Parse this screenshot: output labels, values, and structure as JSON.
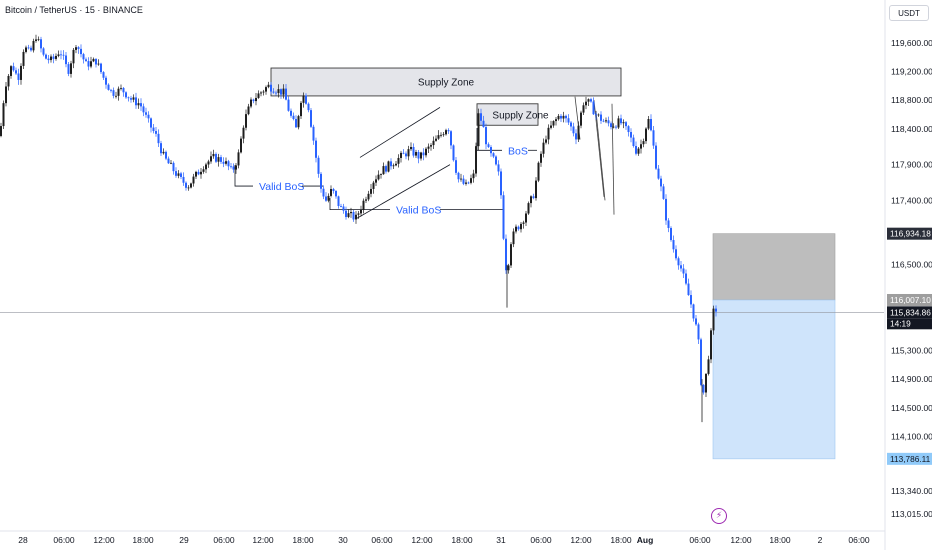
{
  "header": {
    "title": "Bitcoin / TetherUS · 15 · BINANCE",
    "currency": "USDT"
  },
  "colors": {
    "up": "#1e1e1e",
    "down": "#2962ff",
    "annotation_text": "#2962ff",
    "zone_fill": "#e4e5ea",
    "stop_fill": "#bdbdbd",
    "target_fill": "#cfe4fb",
    "last_price_bg": "#131722",
    "alert": "#9c27b0"
  },
  "chart_data": {
    "type": "candlestick",
    "price_axis_ticks": [
      119600,
      119200,
      118800,
      118400,
      117900,
      117400,
      116934.18,
      116500,
      116007.1,
      115834.86,
      115300,
      114900,
      114500,
      114100,
      113786.11,
      113340,
      113015
    ],
    "price_axis_labels": [
      "119,600.00",
      "119,200.00",
      "118,800.00",
      "118,400.00",
      "117,900.00",
      "117,400.00",
      "116,500.00",
      "115,300.00",
      "114,900.00",
      "114,500.00",
      "114,100.00",
      "113,340.00",
      "113,015.00"
    ],
    "time_axis_labels": [
      "28",
      "06:00",
      "12:00",
      "18:00",
      "29",
      "06:00",
      "12:00",
      "18:00",
      "30",
      "06:00",
      "12:00",
      "18:00",
      "31",
      "06:00",
      "12:00",
      "18:00",
      "Aug",
      "06:00",
      "12:00",
      "18:00",
      "2",
      "06:00"
    ],
    "ohlc_path": [
      [
        0,
        118300
      ],
      [
        5,
        119000
      ],
      [
        12,
        119300
      ],
      [
        18,
        119100
      ],
      [
        24,
        119550
      ],
      [
        30,
        119450
      ],
      [
        36,
        119700
      ],
      [
        44,
        119400
      ],
      [
        52,
        119350
      ],
      [
        60,
        119500
      ],
      [
        68,
        119200
      ],
      [
        76,
        119600
      ],
      [
        86,
        119300
      ],
      [
        96,
        119350
      ],
      [
        104,
        119100
      ],
      [
        112,
        118900
      ],
      [
        122,
        118950
      ],
      [
        132,
        118800
      ],
      [
        140,
        118750
      ],
      [
        148,
        118500
      ],
      [
        156,
        118300
      ],
      [
        164,
        118000
      ],
      [
        172,
        117850
      ],
      [
        180,
        117700
      ],
      [
        188,
        117600
      ],
      [
        196,
        117750
      ],
      [
        204,
        117900
      ],
      [
        214,
        118000
      ],
      [
        224,
        117950
      ],
      [
        232,
        117800
      ],
      [
        238,
        118000
      ],
      [
        244,
        118500
      ],
      [
        252,
        118800
      ],
      [
        260,
        118900
      ],
      [
        268,
        119000
      ],
      [
        276,
        118950
      ],
      [
        284,
        118900
      ],
      [
        290,
        118600
      ],
      [
        296,
        118400
      ],
      [
        302,
        118900
      ],
      [
        308,
        118750
      ],
      [
        314,
        118200
      ],
      [
        320,
        117600
      ],
      [
        326,
        117400
      ],
      [
        332,
        117550
      ],
      [
        340,
        117300
      ],
      [
        348,
        117200
      ],
      [
        356,
        117150
      ],
      [
        364,
        117400
      ],
      [
        372,
        117650
      ],
      [
        380,
        117800
      ],
      [
        390,
        117900
      ],
      [
        400,
        118000
      ],
      [
        410,
        118100
      ],
      [
        420,
        118000
      ],
      [
        430,
        118150
      ],
      [
        440,
        118300
      ],
      [
        448,
        118450
      ],
      [
        452,
        118100
      ],
      [
        458,
        117700
      ],
      [
        466,
        117600
      ],
      [
        474,
        117750
      ],
      [
        478,
        118600
      ],
      [
        482,
        118500
      ],
      [
        488,
        118100
      ],
      [
        494,
        117950
      ],
      [
        500,
        117700
      ],
      [
        504,
        116800
      ],
      [
        507,
        116300
      ],
      [
        510,
        116800
      ],
      [
        516,
        117000
      ],
      [
        522,
        117100
      ],
      [
        528,
        117300
      ],
      [
        534,
        117500
      ],
      [
        540,
        118000
      ],
      [
        546,
        118300
      ],
      [
        552,
        118450
      ],
      [
        560,
        118600
      ],
      [
        568,
        118500
      ],
      [
        576,
        118300
      ],
      [
        584,
        118800
      ],
      [
        590,
        118750
      ],
      [
        596,
        118600
      ],
      [
        604,
        118500
      ],
      [
        612,
        118450
      ],
      [
        620,
        118500
      ],
      [
        628,
        118350
      ],
      [
        636,
        118100
      ],
      [
        642,
        118200
      ],
      [
        648,
        118550
      ],
      [
        652,
        118300
      ],
      [
        656,
        117900
      ],
      [
        662,
        117500
      ],
      [
        668,
        117000
      ],
      [
        674,
        116700
      ],
      [
        680,
        116500
      ],
      [
        686,
        116200
      ],
      [
        692,
        115900
      ],
      [
        698,
        115500
      ],
      [
        702,
        114700
      ],
      [
        706,
        114950
      ],
      [
        710,
        115400
      ],
      [
        714,
        115900
      ],
      [
        718,
        115850
      ]
    ],
    "annotations": {
      "supply_zone_1": {
        "label": "Supply Zone",
        "price_top": 119250,
        "price_bottom": 118860
      },
      "supply_zone_2": {
        "label": "Supply Zone",
        "price_top": 118750,
        "price_bottom": 118450
      },
      "bos_labels": [
        "Valid BoS",
        "Valid BoS",
        "BoS"
      ],
      "bos_level_prices": [
        117600,
        117270,
        118100
      ],
      "channel_top_prices": [
        118000,
        118700
      ],
      "channel_bottom_prices": [
        117150,
        117900
      ],
      "drop_line_prices": [
        [
          118850,
          118250
        ],
        [
          118800,
          117450
        ],
        [
          118650,
          117400
        ],
        [
          118750,
          117200
        ]
      ]
    },
    "position": {
      "entry_price": 116007.1,
      "stop_price": 116934.18,
      "target_price": 113786.11
    },
    "last_price": {
      "price": 115834.86,
      "countdown": "14:19"
    }
  }
}
